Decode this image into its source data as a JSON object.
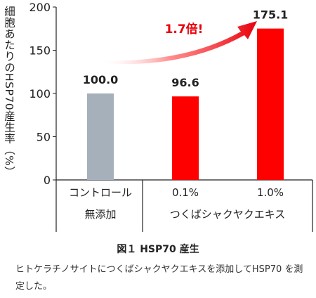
{
  "chart_data": {
    "type": "bar",
    "ylabel": "細胞あたりのHSP70産生率（%）",
    "ylim": [
      0,
      200
    ],
    "yticks": [
      0,
      50,
      100,
      150,
      200
    ],
    "categories": [
      "無添加",
      "0.1%",
      "1.0%"
    ],
    "group_rows": {
      "row1": [
        "コントロール",
        "0.1%",
        "1.0%"
      ],
      "row2": [
        "無添加",
        "つくばシャクヤクエキス"
      ]
    },
    "values": [
      100.0,
      96.6,
      175.1
    ],
    "value_labels": [
      "100.0",
      "96.6",
      "175.1"
    ],
    "bar_colors": [
      "#a5b0bb",
      "#ff0000",
      "#ff0000"
    ],
    "annotation": "1.7倍!",
    "annotation_color": "#e8000b"
  },
  "figure": {
    "title": "図１ HSP70 産生",
    "description": "ヒトケラチノサイトにつくばシャクヤクエキスを添加してHSP70 を測定した。"
  }
}
